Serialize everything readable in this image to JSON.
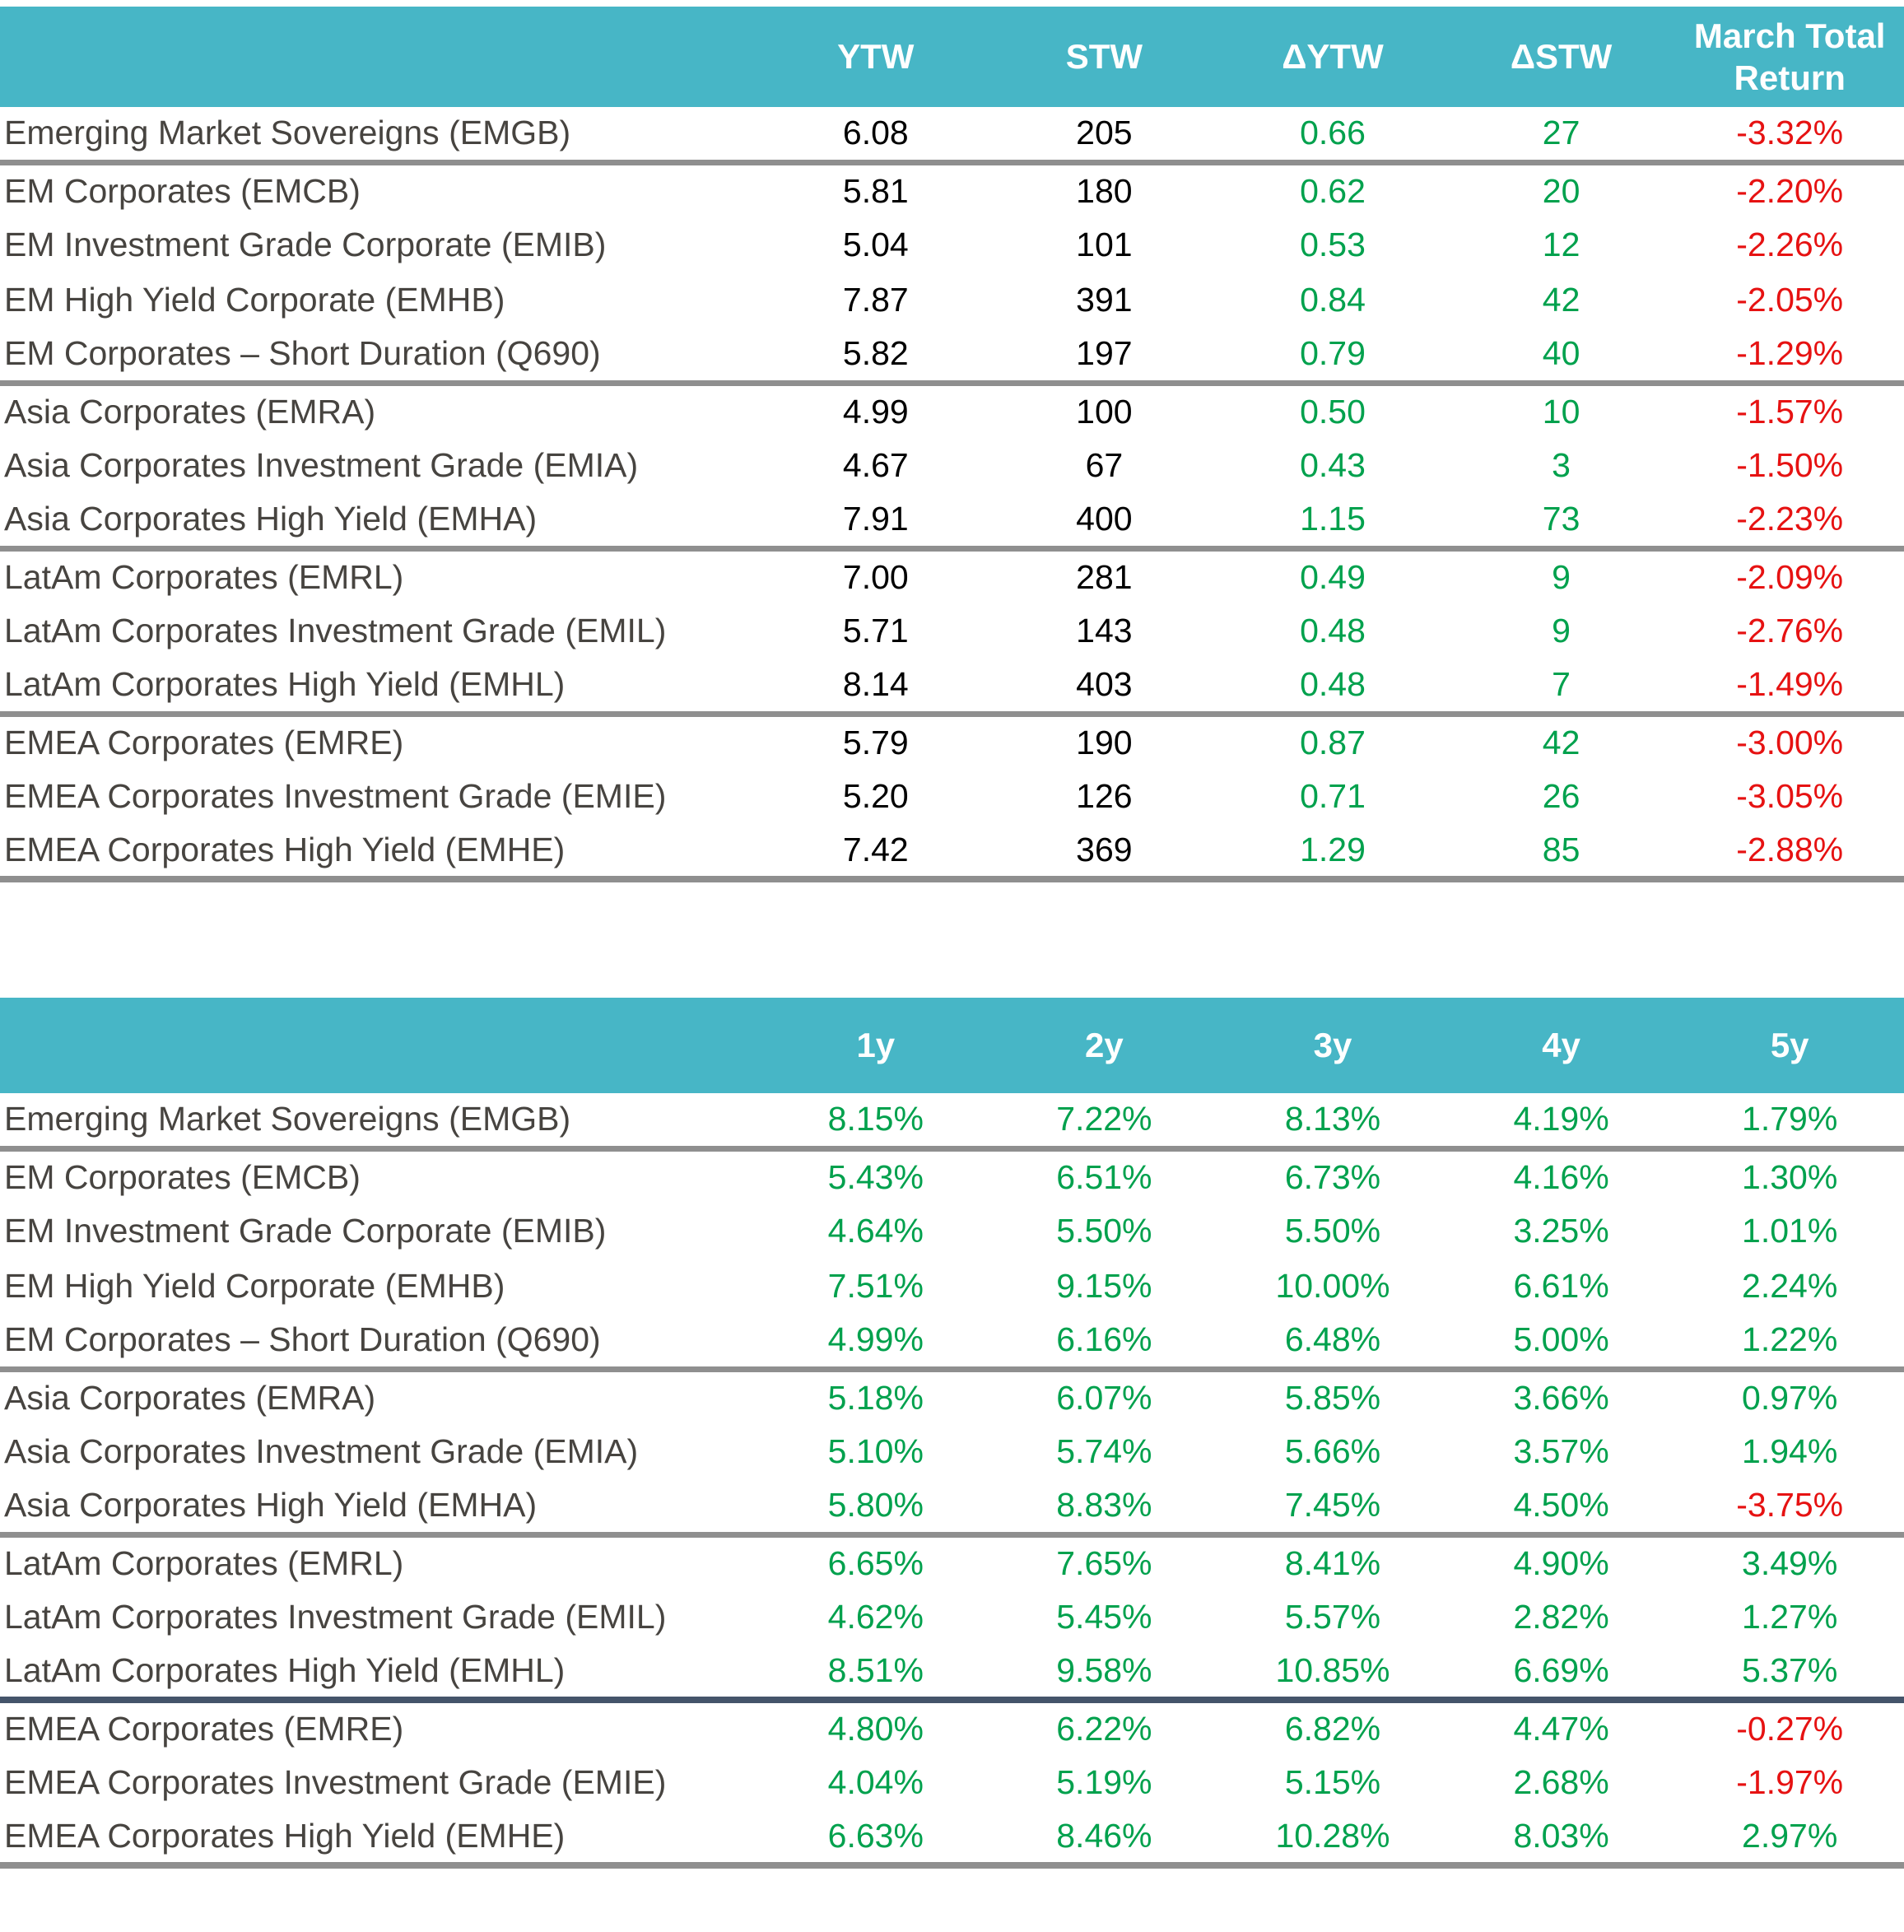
{
  "colors": {
    "header_bg": "#47B6C6",
    "header_text": "#ffffff",
    "label_text": "#474440",
    "value_text": "#000000",
    "positive": "#00A14D",
    "negative": "#E61212",
    "separator_gray": "#8f8f8f",
    "separator_dark": "#44546A",
    "page_bg": "#ffffff"
  },
  "tables": [
    {
      "name": "spreads-and-march-returns-table",
      "columns": [
        "",
        "YTW",
        "STW",
        "ΔYTW",
        "ΔSTW",
        "March Total Return"
      ],
      "column_styles": [
        "label",
        "plain",
        "plain",
        "signed",
        "signed",
        "signed"
      ],
      "rows": [
        {
          "label": "Emerging Market Sovereigns (EMGB)",
          "values": [
            "6.08",
            "205",
            "0.66",
            "27",
            "-3.32%"
          ]
        },
        {
          "label": "EM Corporates (EMCB)",
          "values": [
            "5.81",
            "180",
            "0.62",
            "20",
            "-2.20%"
          ]
        },
        {
          "label": "EM Investment Grade Corporate (EMIB)",
          "values": [
            "5.04",
            "101",
            "0.53",
            "12",
            "-2.26%"
          ]
        },
        {
          "label": "EM High Yield Corporate (EMHB)",
          "values": [
            "7.87",
            "391",
            "0.84",
            "42",
            "-2.05%"
          ]
        },
        {
          "label": "EM Corporates – Short Duration (Q690)",
          "values": [
            "5.82",
            "197",
            "0.79",
            "40",
            "-1.29%"
          ]
        },
        {
          "label": "Asia Corporates (EMRA)",
          "values": [
            "4.99",
            "100",
            "0.50",
            "10",
            "-1.57%"
          ]
        },
        {
          "label": "Asia Corporates Investment Grade (EMIA)",
          "values": [
            "4.67",
            "67",
            "0.43",
            "3",
            "-1.50%"
          ]
        },
        {
          "label": "Asia Corporates High Yield (EMHA)",
          "values": [
            "7.91",
            "400",
            "1.15",
            "73",
            "-2.23%"
          ]
        },
        {
          "label": "LatAm Corporates (EMRL)",
          "values": [
            "7.00",
            "281",
            "0.49",
            "9",
            "-2.09%"
          ]
        },
        {
          "label": "LatAm Corporates Investment Grade (EMIL)",
          "values": [
            "5.71",
            "143",
            "0.48",
            "9",
            "-2.76%"
          ]
        },
        {
          "label": "LatAm Corporates High Yield (EMHL)",
          "values": [
            "8.14",
            "403",
            "0.48",
            "7",
            "-1.49%"
          ]
        },
        {
          "label": "EMEA Corporates (EMRE)",
          "values": [
            "5.79",
            "190",
            "0.87",
            "42",
            "-3.00%"
          ]
        },
        {
          "label": "EMEA Corporates Investment Grade (EMIE)",
          "values": [
            "5.20",
            "126",
            "0.71",
            "26",
            "-3.05%"
          ]
        },
        {
          "label": "EMEA Corporates High Yield (EMHE)",
          "values": [
            "7.42",
            "369",
            "1.29",
            "85",
            "-2.88%"
          ]
        }
      ],
      "separators": {
        "gray_after": [
          0,
          4,
          7,
          10
        ],
        "dark_after": [],
        "last_after": [
          13
        ]
      }
    },
    {
      "name": "trailing-annual-returns-table",
      "columns": [
        "",
        "1y",
        "2y",
        "3y",
        "4y",
        "5y"
      ],
      "column_styles": [
        "label",
        "signed",
        "signed",
        "signed",
        "signed",
        "signed"
      ],
      "rows": [
        {
          "label": "Emerging Market Sovereigns (EMGB)",
          "values": [
            "8.15%",
            "7.22%",
            "8.13%",
            "4.19%",
            "1.79%"
          ]
        },
        {
          "label": "EM Corporates (EMCB)",
          "values": [
            "5.43%",
            "6.51%",
            "6.73%",
            "4.16%",
            "1.30%"
          ]
        },
        {
          "label": "EM Investment Grade Corporate (EMIB)",
          "values": [
            "4.64%",
            "5.50%",
            "5.50%",
            "3.25%",
            "1.01%"
          ]
        },
        {
          "label": "EM High Yield Corporate (EMHB)",
          "values": [
            "7.51%",
            "9.15%",
            "10.00%",
            "6.61%",
            "2.24%"
          ]
        },
        {
          "label": "EM Corporates – Short Duration (Q690)",
          "values": [
            "4.99%",
            "6.16%",
            "6.48%",
            "5.00%",
            "1.22%"
          ]
        },
        {
          "label": "Asia Corporates (EMRA)",
          "values": [
            "5.18%",
            "6.07%",
            "5.85%",
            "3.66%",
            "0.97%"
          ]
        },
        {
          "label": "Asia Corporates Investment Grade (EMIA)",
          "values": [
            "5.10%",
            "5.74%",
            "5.66%",
            "3.57%",
            "1.94%"
          ]
        },
        {
          "label": "Asia Corporates High Yield (EMHA)",
          "values": [
            "5.80%",
            "8.83%",
            "7.45%",
            "4.50%",
            "-3.75%"
          ]
        },
        {
          "label": "LatAm Corporates (EMRL)",
          "values": [
            "6.65%",
            "7.65%",
            "8.41%",
            "4.90%",
            "3.49%"
          ]
        },
        {
          "label": "LatAm Corporates Investment Grade (EMIL)",
          "values": [
            "4.62%",
            "5.45%",
            "5.57%",
            "2.82%",
            "1.27%"
          ]
        },
        {
          "label": "LatAm Corporates High Yield (EMHL)",
          "values": [
            "8.51%",
            "9.58%",
            "10.85%",
            "6.69%",
            "5.37%"
          ]
        },
        {
          "label": "EMEA Corporates (EMRE)",
          "values": [
            "4.80%",
            "6.22%",
            "6.82%",
            "4.47%",
            "-0.27%"
          ]
        },
        {
          "label": "EMEA Corporates Investment Grade (EMIE)",
          "values": [
            "4.04%",
            "5.19%",
            "5.15%",
            "2.68%",
            "-1.97%"
          ]
        },
        {
          "label": "EMEA Corporates High Yield (EMHE)",
          "values": [
            "6.63%",
            "8.46%",
            "10.28%",
            "8.03%",
            "2.97%"
          ]
        }
      ],
      "separators": {
        "gray_after": [
          0,
          4,
          7
        ],
        "dark_after": [
          10
        ],
        "last_after": [
          13
        ]
      }
    }
  ]
}
